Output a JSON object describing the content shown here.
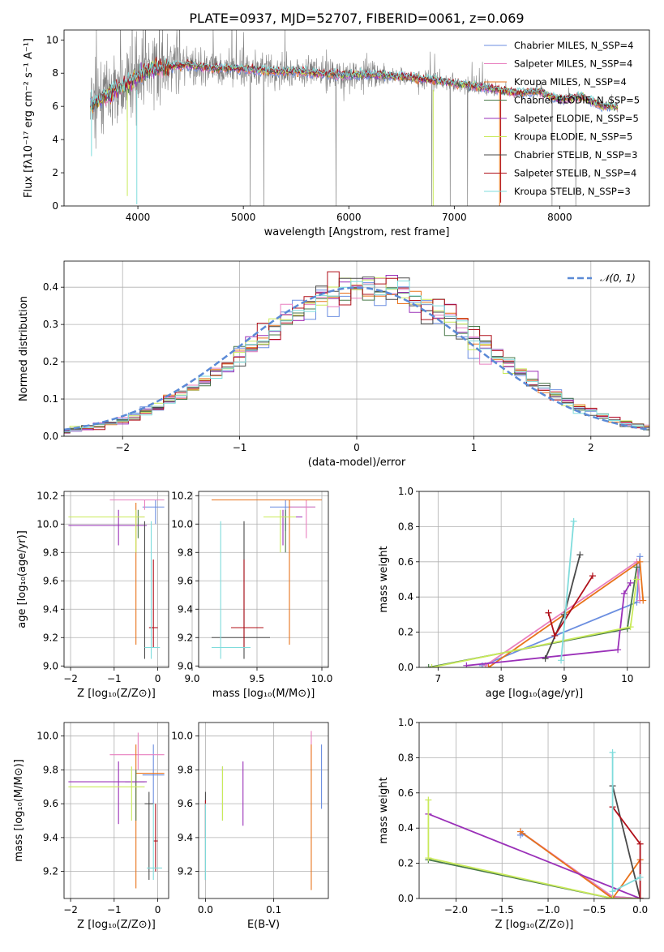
{
  "figure": {
    "title": "PLATE=0937, MJD=52707, FIBERID=0061, z=0.069"
  },
  "colors": {
    "chabrier_miles": "#6b8ee0",
    "salpeter_miles": "#e87fbf",
    "kroupa_miles": "#e8731c",
    "chabrier_elodie": "#4a7a4a",
    "salpeter_elodie": "#9a30b8",
    "kroupa_elodie": "#c9ea5a",
    "chabrier_stelib": "#4a4a4a",
    "salpeter_stelib": "#b0101a",
    "kroupa_stelib": "#7fdcdc",
    "data": "#808080",
    "normal": "#5b8ad6"
  },
  "chart_data": [
    {
      "id": "spectrum",
      "type": "line",
      "xlabel": "wavelength [Angstrom, rest frame]",
      "ylabel": "Flux [fλ10⁻¹⁷ erg cm⁻² s⁻¹ A⁻¹]",
      "xlim": [
        3300,
        8850
      ],
      "ylim": [
        0,
        10.6
      ],
      "xticks": [
        4000,
        5000,
        6000,
        7000,
        8000
      ],
      "yticks": [
        0,
        2,
        4,
        6,
        8,
        10
      ],
      "continuum": [
        [
          3550,
          6.2
        ],
        [
          3650,
          6.4
        ],
        [
          3800,
          7.0
        ],
        [
          3950,
          7.6
        ],
        [
          4100,
          8.2
        ],
        [
          4300,
          8.4
        ],
        [
          4500,
          8.5
        ],
        [
          4700,
          8.3
        ],
        [
          4900,
          8.3
        ],
        [
          5100,
          8.2
        ],
        [
          5300,
          8.1
        ],
        [
          5500,
          8.1
        ],
        [
          5700,
          8.0
        ],
        [
          5900,
          7.9
        ],
        [
          6100,
          7.9
        ],
        [
          6300,
          7.9
        ],
        [
          6500,
          7.8
        ],
        [
          6800,
          7.6
        ],
        [
          7000,
          7.4
        ],
        [
          7200,
          7.2
        ],
        [
          7400,
          7.0
        ],
        [
          7600,
          6.8
        ],
        [
          7800,
          6.9
        ],
        [
          8000,
          6.4
        ],
        [
          8200,
          6.6
        ],
        [
          8400,
          6.0
        ],
        [
          8550,
          6.0
        ]
      ],
      "legend": [
        {
          "label": "Chabrier MILES, N_SSP=4",
          "color_key": "chabrier_miles"
        },
        {
          "label": "Salpeter MILES, N_SSP=4",
          "color_key": "salpeter_miles"
        },
        {
          "label": "Kroupa MILES, N_SSP=4",
          "color_key": "kroupa_miles"
        },
        {
          "label": "Chabrier ELODIE, N_SSP=5",
          "color_key": "chabrier_elodie"
        },
        {
          "label": "Salpeter ELODIE, N_SSP=5",
          "color_key": "salpeter_elodie"
        },
        {
          "label": "Kroupa ELODIE, N_SSP=5",
          "color_key": "kroupa_elodie"
        },
        {
          "label": "Chabrier STELIB, N_SSP=3",
          "color_key": "chabrier_stelib"
        },
        {
          "label": "Salpeter STELIB, N_SSP=4",
          "color_key": "salpeter_stelib"
        },
        {
          "label": "Kroupa STELIB, N_SSP=3",
          "color_key": "kroupa_stelib"
        }
      ]
    },
    {
      "id": "residuals",
      "type": "line",
      "xlabel": "(data-model)/error",
      "ylabel": "Normed distribution",
      "xlim": [
        -2.5,
        2.5
      ],
      "ylim": [
        0,
        0.47
      ],
      "xticks": [
        -2,
        -1,
        0,
        1,
        2
      ],
      "yticks": [
        0.0,
        0.1,
        0.2,
        0.3,
        0.4
      ],
      "legend": "𝒩(0, 1)",
      "legend_position": "top-right"
    },
    {
      "id": "age_vs_Z",
      "type": "scatter",
      "xlabel": "Z [log₁₀(Z/Z⊙)]",
      "ylabel": "age  [log₁₀(age/yr)]",
      "xlim": [
        -2.15,
        0.25
      ],
      "ylim": [
        8.99,
        10.23
      ],
      "xticks": [
        -2,
        -1,
        0
      ],
      "yticks": [
        9.0,
        9.2,
        9.4,
        9.6,
        9.8,
        10.0,
        10.2
      ],
      "points": [
        {
          "x": -0.05,
          "y": 10.12,
          "x0": -0.35,
          "x1": 0.15,
          "y0": 10.0,
          "y1": 10.17,
          "color_key": "chabrier_miles"
        },
        {
          "x": -0.3,
          "y": 10.17,
          "x0": -1.1,
          "x1": 0.15,
          "y0": 10.1,
          "y1": 10.17,
          "color_key": "salpeter_miles"
        },
        {
          "x": -0.5,
          "y": 10.05,
          "x0": -0.5,
          "x1": -0.3,
          "y0": 9.15,
          "y1": 10.15,
          "color_key": "kroupa_miles"
        },
        {
          "x": -0.45,
          "y": 10.05,
          "x0": -0.75,
          "x1": -0.3,
          "y0": 9.9,
          "y1": 10.1,
          "color_key": "chabrier_elodie"
        },
        {
          "x": -0.9,
          "y": 9.99,
          "x0": -2.05,
          "x1": -0.25,
          "y0": 9.85,
          "y1": 10.1,
          "color_key": "salpeter_elodie"
        },
        {
          "x": -0.5,
          "y": 10.05,
          "x0": -2.05,
          "x1": -0.3,
          "y0": 9.8,
          "y1": 10.1,
          "color_key": "kroupa_elodie"
        },
        {
          "x": -0.3,
          "y": 9.2,
          "x0": -0.3,
          "x1": -0.3,
          "y0": 9.05,
          "y1": 10.02,
          "color_key": "chabrier_stelib"
        },
        {
          "x": -0.1,
          "y": 9.27,
          "x0": -0.2,
          "x1": 0.0,
          "y0": 9.13,
          "y1": 9.75,
          "color_key": "salpeter_stelib"
        },
        {
          "x": -0.15,
          "y": 9.13,
          "x0": -0.3,
          "x1": 0.05,
          "y0": 9.05,
          "y1": 10.02,
          "color_key": "kroupa_stelib"
        }
      ]
    },
    {
      "id": "age_vs_mass",
      "type": "scatter",
      "xlabel": "mass [log₁₀(M/M⊙)]",
      "ylabel": "",
      "xlim": [
        9.05,
        10.05
      ],
      "ylim": [
        8.99,
        10.23
      ],
      "xticks": [
        9.0,
        9.5,
        10.0
      ],
      "xtick_labels": [
        "9.0",
        "9.5",
        "10.0"
      ],
      "yticks": [
        9.0,
        9.2,
        9.4,
        9.6,
        9.8,
        10.0,
        10.2
      ],
      "points": [
        {
          "x": 9.72,
          "y": 10.12,
          "x0": 9.6,
          "x1": 9.95,
          "y0": 9.95,
          "y1": 10.17,
          "color_key": "chabrier_miles"
        },
        {
          "x": 9.88,
          "y": 10.12,
          "x0": 9.75,
          "x1": 9.95,
          "y0": 9.9,
          "y1": 10.17,
          "color_key": "salpeter_miles"
        },
        {
          "x": 9.75,
          "y": 10.17,
          "x0": 9.15,
          "x1": 10.0,
          "y0": 9.15,
          "y1": 10.17,
          "color_key": "kroupa_miles"
        },
        {
          "x": 9.72,
          "y": 10.05,
          "x0": 9.6,
          "x1": 9.8,
          "y0": 9.8,
          "y1": 10.1,
          "color_key": "chabrier_elodie"
        },
        {
          "x": 9.7,
          "y": 10.05,
          "x0": 9.6,
          "x1": 9.85,
          "y0": 9.85,
          "y1": 10.1,
          "color_key": "salpeter_elodie"
        },
        {
          "x": 9.68,
          "y": 10.05,
          "x0": 9.55,
          "x1": 9.8,
          "y0": 9.8,
          "y1": 10.1,
          "color_key": "kroupa_elodie"
        },
        {
          "x": 9.4,
          "y": 9.2,
          "x0": 9.15,
          "x1": 9.6,
          "y0": 9.05,
          "y1": 10.02,
          "color_key": "chabrier_stelib"
        },
        {
          "x": 9.4,
          "y": 9.27,
          "x0": 9.3,
          "x1": 9.55,
          "y0": 9.13,
          "y1": 9.75,
          "color_key": "salpeter_stelib"
        },
        {
          "x": 9.22,
          "y": 9.13,
          "x0": 9.15,
          "x1": 9.45,
          "y0": 9.05,
          "y1": 10.02,
          "color_key": "kroupa_stelib"
        }
      ]
    },
    {
      "id": "weight_vs_age",
      "type": "line",
      "xlabel": "age  [log₁₀(age/yr)]",
      "ylabel": "mass weight",
      "xlim": [
        6.7,
        10.35
      ],
      "ylim": [
        0,
        1.0
      ],
      "xticks": [
        7,
        8,
        9,
        10
      ],
      "yticks": [
        0.0,
        0.2,
        0.4,
        0.6,
        0.8,
        1.0
      ],
      "series": [
        {
          "color_key": "chabrier_miles",
          "points": [
            [
              7.7,
              0.01
            ],
            [
              10.15,
              0.37
            ],
            [
              10.2,
              0.63
            ]
          ]
        },
        {
          "color_key": "salpeter_miles",
          "points": [
            [
              7.75,
              0.01
            ],
            [
              10.15,
              0.6
            ],
            [
              10.2,
              0.38
            ]
          ]
        },
        {
          "color_key": "kroupa_miles",
          "points": [
            [
              7.8,
              0.0
            ],
            [
              10.2,
              0.6
            ],
            [
              10.25,
              0.38
            ]
          ]
        },
        {
          "color_key": "chabrier_elodie",
          "points": [
            [
              6.85,
              0.0
            ],
            [
              10.0,
              0.22
            ],
            [
              10.15,
              0.57
            ]
          ]
        },
        {
          "color_key": "salpeter_elodie",
          "points": [
            [
              7.45,
              0.01
            ],
            [
              9.85,
              0.1
            ],
            [
              9.95,
              0.42
            ],
            [
              10.05,
              0.48
            ]
          ]
        },
        {
          "color_key": "kroupa_elodie",
          "points": [
            [
              6.9,
              0.0
            ],
            [
              10.05,
              0.23
            ],
            [
              10.15,
              0.5
            ]
          ]
        },
        {
          "color_key": "chabrier_stelib",
          "points": [
            [
              8.7,
              0.05
            ],
            [
              9.0,
              0.3
            ],
            [
              9.25,
              0.64
            ]
          ]
        },
        {
          "color_key": "salpeter_stelib",
          "points": [
            [
              8.75,
              0.31
            ],
            [
              8.85,
              0.18
            ],
            [
              9.45,
              0.52
            ]
          ]
        },
        {
          "color_key": "kroupa_stelib",
          "points": [
            [
              8.95,
              0.04
            ],
            [
              9.15,
              0.83
            ]
          ]
        }
      ]
    },
    {
      "id": "mass_vs_Z",
      "type": "scatter",
      "xlabel": "Z [log₁₀(Z/Z⊙)]",
      "ylabel": "mass [log₁₀(M/M⊙)]",
      "xlim": [
        -2.15,
        0.25
      ],
      "ylim": [
        9.04,
        10.08
      ],
      "xticks": [
        -2,
        -1,
        0
      ],
      "yticks": [
        9.2,
        9.4,
        9.6,
        9.8,
        10.0
      ],
      "points": [
        {
          "x": -0.1,
          "y": 9.77,
          "x0": -0.35,
          "x1": 0.15,
          "y0": 9.6,
          "y1": 9.95,
          "color_key": "chabrier_miles"
        },
        {
          "x": -0.45,
          "y": 9.89,
          "x0": -1.1,
          "x1": 0.15,
          "y0": 9.8,
          "y1": 10.02,
          "color_key": "salpeter_miles"
        },
        {
          "x": -0.5,
          "y": 9.78,
          "x0": -0.5,
          "x1": 0.15,
          "y0": 9.1,
          "y1": 9.95,
          "color_key": "kroupa_miles"
        },
        {
          "x": -0.5,
          "y": 9.73,
          "x0": -0.75,
          "x1": -0.3,
          "y0": 9.5,
          "y1": 9.8,
          "color_key": "chabrier_elodie"
        },
        {
          "x": -0.9,
          "y": 9.73,
          "x0": -2.05,
          "x1": -0.25,
          "y0": 9.48,
          "y1": 9.85,
          "color_key": "salpeter_elodie"
        },
        {
          "x": -0.6,
          "y": 9.7,
          "x0": -2.05,
          "x1": -0.3,
          "y0": 9.5,
          "y1": 9.82,
          "color_key": "kroupa_elodie"
        },
        {
          "x": -0.2,
          "y": 9.6,
          "x0": -0.3,
          "x1": -0.1,
          "y0": 9.15,
          "y1": 9.67,
          "color_key": "chabrier_stelib"
        },
        {
          "x": -0.05,
          "y": 9.38,
          "x0": -0.1,
          "x1": 0.0,
          "y0": 9.2,
          "y1": 9.6,
          "color_key": "salpeter_stelib"
        },
        {
          "x": -0.1,
          "y": 9.22,
          "x0": -0.25,
          "x1": 0.1,
          "y0": 9.15,
          "y1": 9.6,
          "color_key": "kroupa_stelib"
        }
      ]
    },
    {
      "id": "mass_vs_EBV",
      "type": "scatter",
      "xlabel": "E(B-V)",
      "ylabel": "",
      "xlim": [
        -0.01,
        0.18
      ],
      "ylim": [
        9.04,
        10.08
      ],
      "xticks": [
        0.0,
        0.1
      ],
      "yticks": [
        9.2,
        9.4,
        9.6,
        9.8,
        10.0
      ],
      "points": [
        {
          "x": 0.17,
          "y": 9.77,
          "x0": 0.17,
          "x1": 0.17,
          "y0": 9.57,
          "y1": 9.95,
          "color_key": "chabrier_miles"
        },
        {
          "x": 0.155,
          "y": 9.89,
          "x0": 0.155,
          "x1": 0.155,
          "y0": 9.8,
          "y1": 10.03,
          "color_key": "salpeter_miles"
        },
        {
          "x": 0.155,
          "y": 9.78,
          "x0": 0.155,
          "x1": 0.155,
          "y0": 9.09,
          "y1": 9.95,
          "color_key": "kroupa_miles"
        },
        {
          "x": 0.025,
          "y": 9.73,
          "x0": 0.025,
          "x1": 0.025,
          "y0": 9.5,
          "y1": 9.82,
          "color_key": "chabrier_elodie"
        },
        {
          "x": 0.055,
          "y": 9.73,
          "x0": 0.055,
          "x1": 0.055,
          "y0": 9.47,
          "y1": 9.85,
          "color_key": "salpeter_elodie"
        },
        {
          "x": 0.025,
          "y": 9.7,
          "x0": 0.025,
          "x1": 0.025,
          "y0": 9.5,
          "y1": 9.82,
          "color_key": "kroupa_elodie"
        },
        {
          "x": 0.0,
          "y": 9.6,
          "x0": 0.0,
          "x1": 0.0,
          "y0": 9.15,
          "y1": 9.67,
          "color_key": "chabrier_stelib"
        },
        {
          "x": 0.0,
          "y": 9.6,
          "x0": 0.0,
          "x1": 0.0,
          "y0": 9.4,
          "y1": 9.62,
          "color_key": "salpeter_stelib"
        },
        {
          "x": 0.0,
          "y": 9.22,
          "x0": 0.0,
          "x1": 0.0,
          "y0": 9.15,
          "y1": 9.6,
          "color_key": "kroupa_stelib"
        }
      ]
    },
    {
      "id": "weight_vs_Z",
      "type": "line",
      "xlabel": "Z [log₁₀(Z/Z⊙)]",
      "ylabel": "mass weight",
      "xlim": [
        -2.4,
        0.1
      ],
      "ylim": [
        0,
        1.0
      ],
      "xticks": [
        -2.0,
        -1.5,
        -1.0,
        -0.5,
        0.0
      ],
      "xtick_labels": [
        "−2.0",
        "−1.5",
        "−1.0",
        "−0.5",
        "0.0"
      ],
      "yticks": [
        0.0,
        0.2,
        0.4,
        0.6,
        0.8,
        1.0
      ],
      "series": [
        {
          "color_key": "chabrier_miles",
          "points": [
            [
              -1.3,
              0.36
            ],
            [
              -1.28,
              0.37
            ],
            [
              -0.3,
              0.01
            ],
            [
              0.0,
              0.0
            ]
          ]
        },
        {
          "color_key": "salpeter_miles",
          "points": [
            [
              -1.3,
              0.38
            ],
            [
              -0.3,
              0.01
            ],
            [
              0.0,
              0.0
            ]
          ]
        },
        {
          "color_key": "kroupa_miles",
          "points": [
            [
              -1.3,
              0.38
            ],
            [
              -0.3,
              0.0
            ],
            [
              0.0,
              0.22
            ]
          ]
        },
        {
          "color_key": "chabrier_elodie",
          "points": [
            [
              -2.3,
              0.22
            ],
            [
              -0.3,
              0.0
            ],
            [
              0.0,
              0.0
            ]
          ]
        },
        {
          "color_key": "salpeter_elodie",
          "points": [
            [
              -2.3,
              0.48
            ],
            [
              0.0,
              0.0
            ]
          ]
        },
        {
          "color_key": "kroupa_elodie",
          "points": [
            [
              -2.3,
              0.56
            ],
            [
              -2.3,
              0.23
            ],
            [
              -0.3,
              0.0
            ],
            [
              0.0,
              0.0
            ]
          ]
        },
        {
          "color_key": "chabrier_stelib",
          "points": [
            [
              -0.3,
              0.64
            ],
            [
              0.0,
              0.0
            ]
          ]
        },
        {
          "color_key": "salpeter_stelib",
          "points": [
            [
              -0.3,
              0.52
            ],
            [
              0.0,
              0.31
            ],
            [
              0.0,
              0.0
            ]
          ]
        },
        {
          "color_key": "kroupa_stelib",
          "points": [
            [
              -0.3,
              0.83
            ],
            [
              -0.3,
              0.04
            ],
            [
              0.0,
              0.12
            ]
          ]
        }
      ]
    }
  ]
}
